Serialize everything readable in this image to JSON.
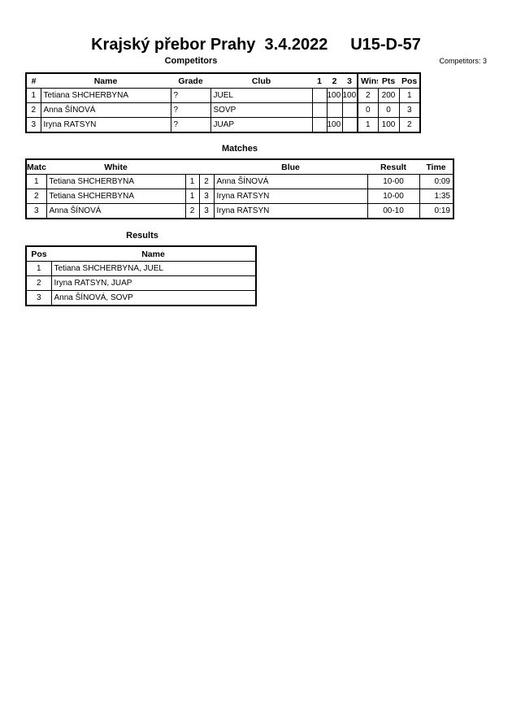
{
  "header": {
    "event": "Krajský přebor Prahy",
    "date": "3.4.2022",
    "category": "U15-D-57",
    "competitors_count": "Competitors: 3"
  },
  "competitors": {
    "title": "Competitors",
    "columns": [
      "#",
      "Name",
      "Grade",
      "Club",
      "1",
      "2",
      "3",
      "Wins",
      "Pts",
      "Pos"
    ],
    "rows": [
      [
        "1",
        "Tetiana SHCHERBYNA",
        "?",
        "JUEL",
        "",
        "100",
        "100",
        "2",
        "200",
        "1"
      ],
      [
        "2",
        "Anna ŠÍNOVÁ",
        "?",
        "SOVP",
        "",
        "",
        "",
        "0",
        "0",
        "3"
      ],
      [
        "3",
        "Iryna RATSYN",
        "?",
        "JUAP",
        "",
        "100",
        "",
        "1",
        "100",
        "2"
      ]
    ]
  },
  "matches": {
    "title": "Matches",
    "columns": [
      "Match",
      "White",
      "",
      "",
      "Blue",
      "Result",
      "Time"
    ],
    "rows": [
      [
        "1",
        "Tetiana SHCHERBYNA",
        "1",
        "2",
        "Anna ŠÍNOVÁ",
        "10-00",
        "0:09"
      ],
      [
        "2",
        "Tetiana SHCHERBYNA",
        "1",
        "3",
        "Iryna RATSYN",
        "10-00",
        "1:35"
      ],
      [
        "3",
        "Anna ŠÍNOVÁ",
        "2",
        "3",
        "Iryna RATSYN",
        "00-10",
        "0:19"
      ]
    ]
  },
  "results": {
    "title": "Results",
    "columns": [
      "Pos",
      "Name"
    ],
    "rows": [
      [
        "1",
        "Tetiana SHCHERBYNA, JUEL"
      ],
      [
        "2",
        "Iryna RATSYN, JUAP"
      ],
      [
        "3",
        "Anna ŠÍNOVÁ, SOVP"
      ]
    ]
  }
}
